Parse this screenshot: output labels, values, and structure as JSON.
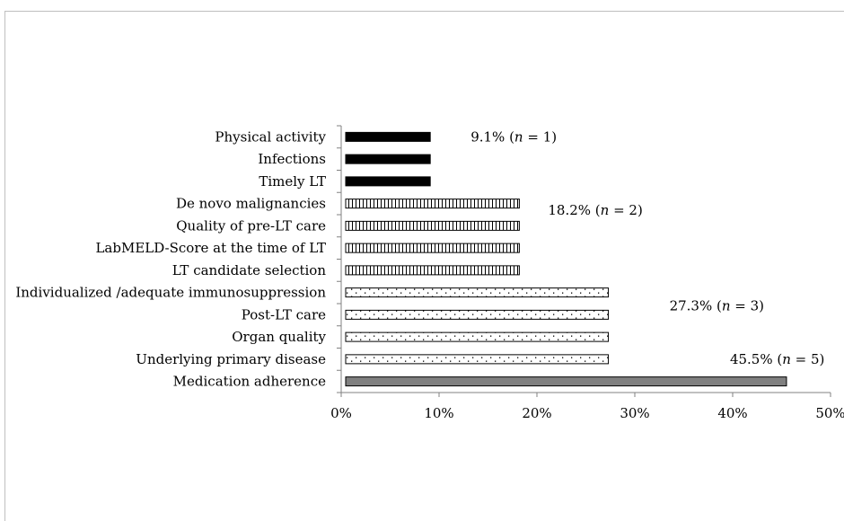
{
  "chart_data": {
    "type": "bar",
    "orientation": "horizontal",
    "title": "",
    "xlabel": "",
    "ylabel": "",
    "xlim": [
      0,
      50
    ],
    "xticks": [
      "0%",
      "10%",
      "20%",
      "30%",
      "40%",
      "50%"
    ],
    "grid": false,
    "legend": "none",
    "categories": [
      "Physical activity",
      "Infections",
      "Timely LT",
      "De novo malignancies",
      "Quality of pre-LT care",
      "LabMELD-Score at the time of LT",
      "LT candidate selection",
      "Individualized /adequate immunosuppression",
      "Post-LT care",
      "Organ quality",
      "Underlying primary disease",
      "Medication adherence"
    ],
    "values": [
      9.1,
      9.1,
      9.1,
      18.2,
      18.2,
      18.2,
      18.2,
      27.3,
      27.3,
      27.3,
      27.3,
      45.5
    ],
    "patterns": [
      "solid-black",
      "solid-black",
      "solid-black",
      "vertical-lines",
      "vertical-lines",
      "vertical-lines",
      "vertical-lines",
      "dots",
      "dots",
      "dots",
      "dots",
      "solid-gray"
    ],
    "colors": {
      "black": "#000000",
      "gray": "#808080"
    },
    "annotations": [
      {
        "pct": "9.1%",
        "n": "n",
        "rest": " = 1)",
        "value": 9.1,
        "count": 1
      },
      {
        "pct": "18.2%",
        "n": "n",
        "rest": " = 2)",
        "value": 18.2,
        "count": 2
      },
      {
        "pct": "27.3%",
        "n": "n",
        "rest": " = 3)",
        "value": 27.3,
        "count": 3
      },
      {
        "pct": "45.5%",
        "n": "n",
        "rest": " = 5)",
        "value": 45.5,
        "count": 5
      }
    ]
  }
}
